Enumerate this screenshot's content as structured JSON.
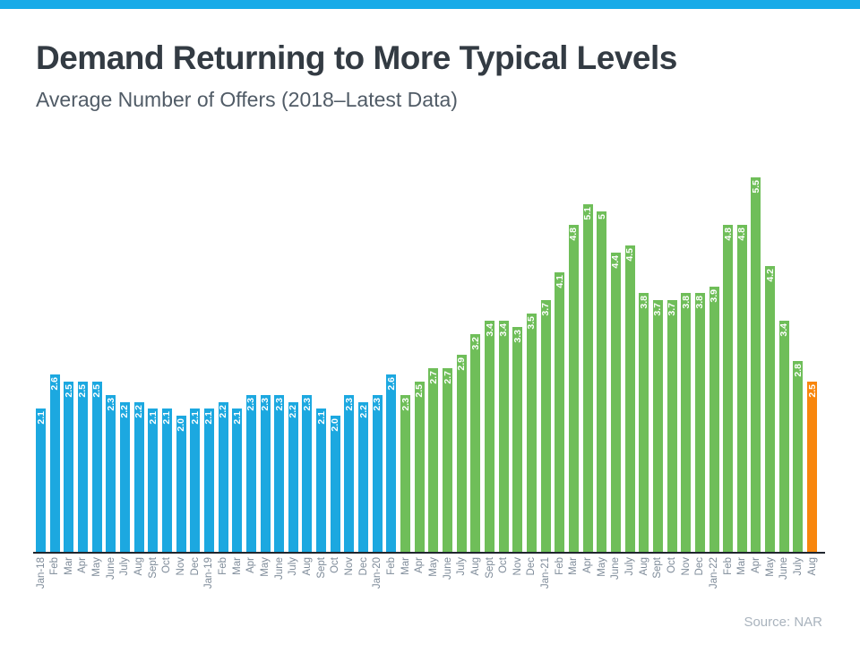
{
  "header": {
    "title": "Demand Returning to More Typical Levels",
    "subtitle": "Average Number of Offers (2018–Latest Data)"
  },
  "footer": {
    "source": "Source: NAR"
  },
  "theme": {
    "accent_stripe": "#18abe8",
    "title_color": "#333b43",
    "subtitle_color": "#505b66",
    "axis_color": "#20262e",
    "x_label_color": "#7e8b99",
    "source_color": "#a9b3bd",
    "background": "#ffffff"
  },
  "chart_data": {
    "type": "bar",
    "title": "Demand Returning to More Typical Levels",
    "subtitle": "Average Number of Offers (2018–Latest Data)",
    "xlabel": "",
    "ylabel": "",
    "ylim": [
      0,
      5.5
    ],
    "grid": false,
    "legend": false,
    "bar_value_label_color": "#ffffff",
    "colors": {
      "blue": "#1ca8e0",
      "green": "#6fbe59",
      "orange": "#f8860d"
    },
    "categories": [
      "Jan-18",
      "Feb",
      "Mar",
      "Apr",
      "May",
      "June",
      "July",
      "Aug",
      "Sept",
      "Oct",
      "Nov",
      "Dec",
      "Jan-19",
      "Feb",
      "Mar",
      "Apr",
      "May",
      "June",
      "July",
      "Aug",
      "Sept",
      "Oct",
      "Nov",
      "Dec",
      "Jan-20",
      "Feb",
      "Mar",
      "Apr",
      "May",
      "June",
      "July",
      "Aug",
      "Sept",
      "Oct",
      "Nov",
      "Dec",
      "Jan-21",
      "Feb",
      "Mar",
      "Apr",
      "May",
      "June",
      "July",
      "Aug",
      "Sept",
      "Oct",
      "Nov",
      "Dec",
      "Jan-22",
      "Feb",
      "Mar",
      "Apr",
      "May",
      "June",
      "July",
      "Aug"
    ],
    "values": [
      2.1,
      2.6,
      2.5,
      2.5,
      2.5,
      2.3,
      2.2,
      2.2,
      2.1,
      2.1,
      2.0,
      2.1,
      2.1,
      2.2,
      2.1,
      2.3,
      2.3,
      2.3,
      2.2,
      2.3,
      2.1,
      2.0,
      2.3,
      2.2,
      2.3,
      2.6,
      2.3,
      2.5,
      2.7,
      2.7,
      2.9,
      3.2,
      3.4,
      3.4,
      3.3,
      3.5,
      3.7,
      4.1,
      4.8,
      5.1,
      5.0,
      4.4,
      4.5,
      3.8,
      3.7,
      3.7,
      3.8,
      3.8,
      3.9,
      4.8,
      4.8,
      5.5,
      4.2,
      3.4,
      2.8,
      2.5
    ],
    "value_labels": [
      "2.1",
      "2.6",
      "2.5",
      "2.5",
      "2.5",
      "2.3",
      "2.2",
      "2.2",
      "2.1",
      "2.1",
      "2.0",
      "2.1",
      "2.1",
      "2.2",
      "2.1",
      "2.3",
      "2.3",
      "2.3",
      "2.2",
      "2.3",
      "2.1",
      "2.0",
      "2.3",
      "2.2",
      "2.3",
      "2.6",
      "2.3",
      "2.5",
      "2.7",
      "2.7",
      "2.9",
      "3.2",
      "3.4",
      "3.4",
      "3.3",
      "3.5",
      "3.7",
      "4.1",
      "4.8",
      "5.1",
      "5",
      "4.4",
      "4.5",
      "3.8",
      "3.7",
      "3.7",
      "3.8",
      "3.8",
      "3.9",
      "4.8",
      "4.8",
      "5.5",
      "4.2",
      "3.4",
      "2.8",
      "2.5"
    ],
    "bar_color_keys": [
      "blue",
      "blue",
      "blue",
      "blue",
      "blue",
      "blue",
      "blue",
      "blue",
      "blue",
      "blue",
      "blue",
      "blue",
      "blue",
      "blue",
      "blue",
      "blue",
      "blue",
      "blue",
      "blue",
      "blue",
      "blue",
      "blue",
      "blue",
      "blue",
      "blue",
      "blue",
      "green",
      "green",
      "green",
      "green",
      "green",
      "green",
      "green",
      "green",
      "green",
      "green",
      "green",
      "green",
      "green",
      "green",
      "green",
      "green",
      "green",
      "green",
      "green",
      "green",
      "green",
      "green",
      "green",
      "green",
      "green",
      "green",
      "green",
      "green",
      "green",
      "orange"
    ]
  }
}
